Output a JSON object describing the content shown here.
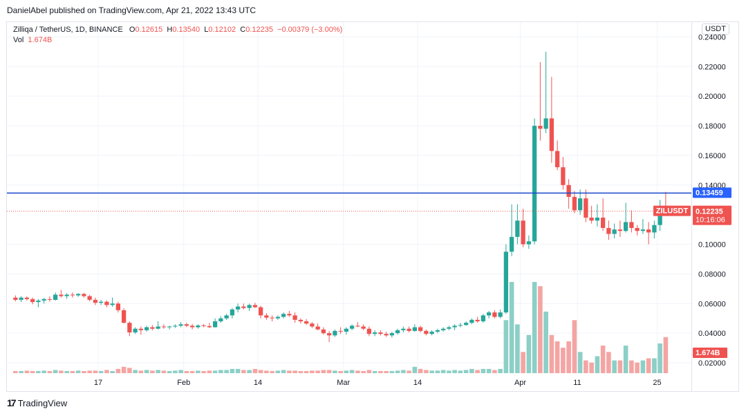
{
  "header": {
    "author": "DanielAbel",
    "published_text": "published on TradingView.com, Apr 21, 2022 13:43 UTC"
  },
  "legend": {
    "symbol": "Zilliqa / TetherUS, 1D, BINANCE",
    "o_label": "O",
    "o_value": "0.12615",
    "h_label": "H",
    "h_value": "0.13540",
    "l_label": "L",
    "l_value": "0.12102",
    "c_label": "C",
    "c_value": "0.12235",
    "change": "−0.00379 (−3.00%)",
    "vol_label": "Vol",
    "vol_value": "1.674B"
  },
  "currency_button": "USDT",
  "price_tags": {
    "level": "0.13459",
    "symbol": "ZILUSDT",
    "last": "0.12235",
    "countdown": "10:16:06",
    "volume": "1.674B"
  },
  "footer": {
    "brand": "TradingView"
  },
  "colors": {
    "up": "#26a69a",
    "down": "#ef5350",
    "level_line": "#1848cc",
    "vol_up": "#8ccfc6",
    "vol_down": "#f4a5a3"
  },
  "chart_data": {
    "type": "candlestick",
    "title": "Zilliqa / TetherUS, 1D, BINANCE",
    "y_axis": {
      "ticks": [
        0.24,
        0.22,
        0.2,
        0.18,
        0.16,
        0.14,
        0.1,
        0.08,
        0.06,
        0.04,
        0.02
      ],
      "tick_labels": [
        "0.24000",
        "0.22000",
        "0.20000",
        "0.18000",
        "0.16000",
        "0.14000",
        "0.10000",
        "0.08000",
        "0.06000",
        "0.04000",
        "0.02000"
      ],
      "range": [
        0.013,
        0.25
      ]
    },
    "x_axis": {
      "tick_labels": [
        "17",
        "Feb",
        "14",
        "Mar",
        "14",
        "Apr",
        "11",
        "25"
      ],
      "tick_dates": [
        "2022-01-17",
        "2022-02-01",
        "2022-02-14",
        "2022-03-01",
        "2022-03-14",
        "2022-04-01",
        "2022-04-11",
        "2022-04-25"
      ],
      "range": [
        "2022-01-01",
        "2022-05-01"
      ]
    },
    "horizontal_level": 0.13459,
    "last_price": 0.12235,
    "start_date": "2022-01-02",
    "candles": [
      [
        0.064,
        0.0655,
        0.0615,
        0.0625
      ],
      [
        0.0625,
        0.065,
        0.061,
        0.064
      ],
      [
        0.064,
        0.0648,
        0.062,
        0.063
      ],
      [
        0.063,
        0.064,
        0.0595,
        0.061
      ],
      [
        0.061,
        0.063,
        0.0575,
        0.062
      ],
      [
        0.062,
        0.0638,
        0.06,
        0.063
      ],
      [
        0.063,
        0.0648,
        0.0612,
        0.0625
      ],
      [
        0.0625,
        0.0675,
        0.062,
        0.066
      ],
      [
        0.066,
        0.0692,
        0.064,
        0.065
      ],
      [
        0.065,
        0.067,
        0.0632,
        0.066
      ],
      [
        0.066,
        0.0675,
        0.064,
        0.0655
      ],
      [
        0.0655,
        0.067,
        0.0645,
        0.0665
      ],
      [
        0.0665,
        0.0672,
        0.064,
        0.065
      ],
      [
        0.065,
        0.066,
        0.0615,
        0.0625
      ],
      [
        0.0625,
        0.064,
        0.059,
        0.0605
      ],
      [
        0.0605,
        0.0625,
        0.059,
        0.0612
      ],
      [
        0.0612,
        0.0622,
        0.0575,
        0.059
      ],
      [
        0.059,
        0.064,
        0.0578,
        0.06
      ],
      [
        0.06,
        0.0612,
        0.054,
        0.0555
      ],
      [
        0.0555,
        0.0568,
        0.0465,
        0.047
      ],
      [
        0.047,
        0.048,
        0.038,
        0.0405
      ],
      [
        0.0405,
        0.044,
        0.0395,
        0.043
      ],
      [
        0.043,
        0.0445,
        0.039,
        0.042
      ],
      [
        0.042,
        0.045,
        0.041,
        0.044
      ],
      [
        0.044,
        0.0455,
        0.042,
        0.043
      ],
      [
        0.043,
        0.048,
        0.0425,
        0.0445
      ],
      [
        0.0445,
        0.046,
        0.043,
        0.044
      ],
      [
        0.044,
        0.045,
        0.0425,
        0.0445
      ],
      [
        0.0445,
        0.046,
        0.0435,
        0.045
      ],
      [
        0.045,
        0.0475,
        0.044,
        0.046
      ],
      [
        0.046,
        0.047,
        0.044,
        0.045
      ],
      [
        0.045,
        0.0462,
        0.0425,
        0.044
      ],
      [
        0.044,
        0.046,
        0.043,
        0.0452
      ],
      [
        0.0452,
        0.0462,
        0.044,
        0.0448
      ],
      [
        0.0448,
        0.047,
        0.0435,
        0.044
      ],
      [
        0.044,
        0.05,
        0.0438,
        0.048
      ],
      [
        0.048,
        0.0515,
        0.047,
        0.05
      ],
      [
        0.05,
        0.053,
        0.049,
        0.052
      ],
      [
        0.052,
        0.057,
        0.05,
        0.056
      ],
      [
        0.056,
        0.06,
        0.054,
        0.058
      ],
      [
        0.058,
        0.06,
        0.056,
        0.057
      ],
      [
        0.057,
        0.06,
        0.055,
        0.059
      ],
      [
        0.059,
        0.0605,
        0.057,
        0.0575
      ],
      [
        0.0575,
        0.0585,
        0.05,
        0.052
      ],
      [
        0.052,
        0.0535,
        0.049,
        0.0505
      ],
      [
        0.0505,
        0.052,
        0.048,
        0.05
      ],
      [
        0.05,
        0.052,
        0.049,
        0.051
      ],
      [
        0.051,
        0.054,
        0.05,
        0.053
      ],
      [
        0.053,
        0.055,
        0.051,
        0.052
      ],
      [
        0.052,
        0.054,
        0.047,
        0.049
      ],
      [
        0.049,
        0.05,
        0.0465,
        0.048
      ],
      [
        0.048,
        0.0495,
        0.0455,
        0.0465
      ],
      [
        0.0465,
        0.0475,
        0.0435,
        0.0445
      ],
      [
        0.0445,
        0.0465,
        0.042,
        0.0425
      ],
      [
        0.0425,
        0.044,
        0.039,
        0.04
      ],
      [
        0.04,
        0.0415,
        0.034,
        0.0385
      ],
      [
        0.0385,
        0.0425,
        0.0375,
        0.0415
      ],
      [
        0.0415,
        0.044,
        0.0395,
        0.041
      ],
      [
        0.041,
        0.044,
        0.039,
        0.043
      ],
      [
        0.043,
        0.046,
        0.042,
        0.045
      ],
      [
        0.045,
        0.0475,
        0.044,
        0.0445
      ],
      [
        0.0445,
        0.046,
        0.042,
        0.043
      ],
      [
        0.043,
        0.0445,
        0.038,
        0.0395
      ],
      [
        0.0395,
        0.042,
        0.038,
        0.0405
      ],
      [
        0.0405,
        0.042,
        0.0385,
        0.0395
      ],
      [
        0.0395,
        0.041,
        0.0375,
        0.0385
      ],
      [
        0.0385,
        0.041,
        0.037,
        0.04
      ],
      [
        0.04,
        0.043,
        0.039,
        0.042
      ],
      [
        0.042,
        0.0445,
        0.0405,
        0.043
      ],
      [
        0.043,
        0.0445,
        0.0405,
        0.0415
      ],
      [
        0.0415,
        0.046,
        0.041,
        0.044
      ],
      [
        0.044,
        0.045,
        0.0405,
        0.0415
      ],
      [
        0.0415,
        0.0425,
        0.0385,
        0.0395
      ],
      [
        0.0395,
        0.042,
        0.0385,
        0.041
      ],
      [
        0.041,
        0.043,
        0.04,
        0.042
      ],
      [
        0.042,
        0.044,
        0.041,
        0.043
      ],
      [
        0.043,
        0.045,
        0.042,
        0.044
      ],
      [
        0.044,
        0.046,
        0.042,
        0.045
      ],
      [
        0.045,
        0.047,
        0.044,
        0.0455
      ],
      [
        0.0455,
        0.048,
        0.045,
        0.047
      ],
      [
        0.047,
        0.05,
        0.046,
        0.049
      ],
      [
        0.049,
        0.051,
        0.047,
        0.048
      ],
      [
        0.048,
        0.053,
        0.047,
        0.052
      ],
      [
        0.052,
        0.055,
        0.05,
        0.054
      ],
      [
        0.054,
        0.0555,
        0.05,
        0.051
      ],
      [
        0.051,
        0.056,
        0.05,
        0.054
      ],
      [
        0.054,
        0.1,
        0.053,
        0.095
      ],
      [
        0.095,
        0.127,
        0.092,
        0.105
      ],
      [
        0.105,
        0.127,
        0.1,
        0.116
      ],
      [
        0.116,
        0.124,
        0.098,
        0.1
      ],
      [
        0.1,
        0.106,
        0.097,
        0.102
      ],
      [
        0.102,
        0.185,
        0.1,
        0.18
      ],
      [
        0.18,
        0.223,
        0.17,
        0.178
      ],
      [
        0.178,
        0.23,
        0.175,
        0.185
      ],
      [
        0.185,
        0.213,
        0.155,
        0.163
      ],
      [
        0.163,
        0.17,
        0.15,
        0.152
      ],
      [
        0.152,
        0.159,
        0.137,
        0.14
      ],
      [
        0.14,
        0.144,
        0.124,
        0.132
      ],
      [
        0.132,
        0.136,
        0.121,
        0.123
      ],
      [
        0.123,
        0.137,
        0.12,
        0.131
      ],
      [
        0.131,
        0.137,
        0.115,
        0.118
      ],
      [
        0.118,
        0.126,
        0.114,
        0.116
      ],
      [
        0.116,
        0.127,
        0.112,
        0.118
      ],
      [
        0.118,
        0.131,
        0.109,
        0.111
      ],
      [
        0.111,
        0.116,
        0.103,
        0.107
      ],
      [
        0.107,
        0.114,
        0.104,
        0.11
      ],
      [
        0.11,
        0.116,
        0.105,
        0.109
      ],
      [
        0.109,
        0.128,
        0.108,
        0.115
      ],
      [
        0.115,
        0.123,
        0.108,
        0.111
      ],
      [
        0.111,
        0.113,
        0.106,
        0.109
      ],
      [
        0.109,
        0.117,
        0.107,
        0.11
      ],
      [
        0.11,
        0.115,
        0.1,
        0.108
      ],
      [
        0.108,
        0.116,
        0.104,
        0.113
      ],
      [
        0.113,
        0.13,
        0.109,
        0.126
      ],
      [
        0.126,
        0.1354,
        0.121,
        0.1224
      ]
    ],
    "volumes_billion": [
      0.1,
      0.1,
      0.12,
      0.1,
      0.1,
      0.12,
      0.1,
      0.15,
      0.12,
      0.1,
      0.1,
      0.12,
      0.1,
      0.12,
      0.12,
      0.1,
      0.15,
      0.1,
      0.2,
      0.3,
      0.25,
      0.15,
      0.12,
      0.15,
      0.12,
      0.15,
      0.12,
      0.1,
      0.12,
      0.15,
      0.1,
      0.1,
      0.12,
      0.1,
      0.12,
      0.12,
      0.15,
      0.15,
      0.2,
      0.2,
      0.15,
      0.15,
      0.2,
      0.15,
      0.12,
      0.1,
      0.12,
      0.15,
      0.12,
      0.12,
      0.1,
      0.1,
      0.12,
      0.12,
      0.15,
      0.15,
      0.12,
      0.1,
      0.12,
      0.15,
      0.12,
      0.1,
      0.15,
      0.1,
      0.1,
      0.1,
      0.1,
      0.12,
      0.15,
      0.12,
      0.3,
      0.2,
      0.15,
      0.12,
      0.12,
      0.15,
      0.12,
      0.15,
      0.12,
      0.15,
      0.2,
      0.15,
      0.2,
      0.2,
      0.15,
      0.2,
      2.5,
      4.3,
      2.3,
      1.0,
      1.8,
      4.3,
      4.1,
      2.9,
      1.8,
      1.5,
      1.2,
      1.5,
      2.5,
      1.0,
      0.6,
      0.5,
      0.8,
      1.3,
      1.0,
      0.6,
      0.6,
      1.3,
      0.6,
      0.5,
      0.6,
      0.7,
      0.7,
      1.4,
      1.7
    ]
  }
}
